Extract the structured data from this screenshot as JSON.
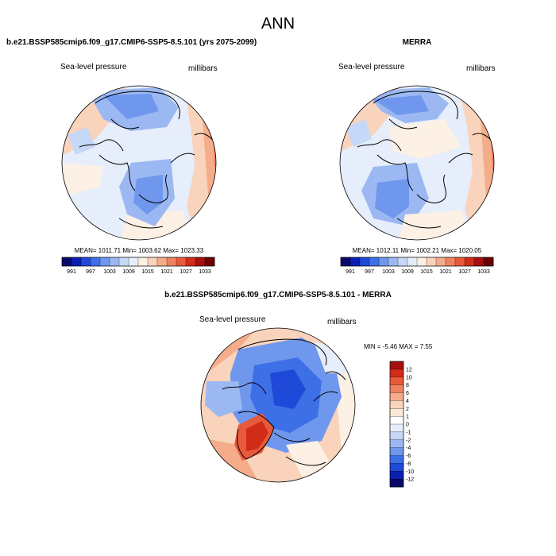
{
  "page_title": "ANN",
  "panels": [
    {
      "case_title": "b.e21.BSSP585cmip6.f09_g17.CMIP6-SSP5-8.5.101 (yrs 2075-2099)",
      "variable_label": "Sea-level pressure",
      "units_label": "millibars",
      "stats": "MEAN= 1011.71   Min= 1003.62   Max= 1023.33"
    },
    {
      "case_title": "MERRA",
      "variable_label": "Sea-level pressure",
      "units_label": "millibars",
      "stats": "MEAN= 1012.11   Min= 1002.21   Max= 1020.05"
    },
    {
      "case_title": "b.e21.BSSP585cmip6.f09_g17.CMIP6-SSP5-8.5.101 - MERRA",
      "variable_label": "Sea-level pressure",
      "units_label": "millibars",
      "stats": "MIN =  -5.46 MAX =   7.55"
    }
  ],
  "colorbar_abs": {
    "tick_labels": [
      "991",
      "997",
      "1003",
      "1009",
      "1015",
      "1021",
      "1027",
      "1033"
    ],
    "colors": [
      "#08086b",
      "#0b1fb0",
      "#1f49d8",
      "#3d6fe6",
      "#6f97ee",
      "#9cb8f2",
      "#c6d8f7",
      "#e6eefb",
      "#fdf0e4",
      "#f9d3bb",
      "#f4ac8a",
      "#ef8261",
      "#e75a3b",
      "#d12c18",
      "#a50f0f",
      "#6b0000"
    ]
  },
  "colorbar_diff": {
    "tick_labels": [
      "12",
      "10",
      "8",
      "6",
      "4",
      "2",
      "1",
      "0",
      "-1",
      "-2",
      "-4",
      "-6",
      "-8",
      "-10",
      "-12"
    ],
    "colors": [
      "#a50f0f",
      "#d12c18",
      "#e75a3b",
      "#ef8261",
      "#f4ac8a",
      "#f9d3bb",
      "#fde9d8",
      "#ffffff",
      "#e6eefb",
      "#c6d8f7",
      "#9cb8f2",
      "#6f97ee",
      "#3d6fe6",
      "#1f49d8",
      "#0b1fb0",
      "#08086b"
    ]
  }
}
